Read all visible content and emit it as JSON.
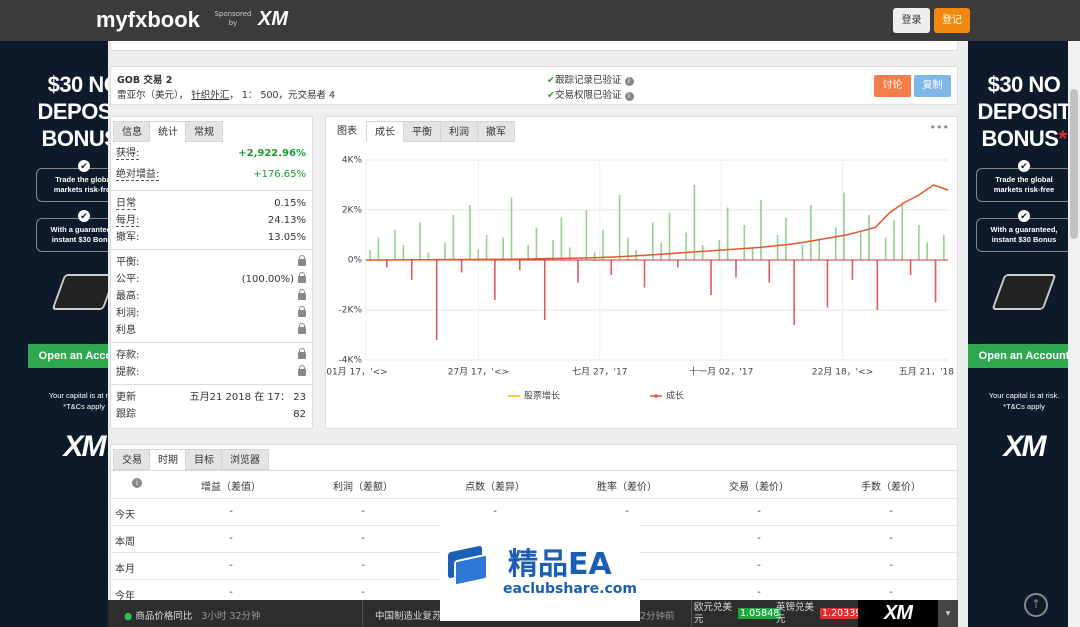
{
  "topbar": {
    "logo": "myfxbook",
    "sponsor": "Sponsored by",
    "sponsor_brand": "XM",
    "login": "登录",
    "register": "登记"
  },
  "ad": {
    "headline": [
      "$30 NO",
      "DEPOSIT",
      "BONUS"
    ],
    "asterisk": "*",
    "point1": "Trade the global markets risk-free",
    "point2": "With a guaranteed, instant $30 Bonus",
    "cta": "Open an Account",
    "disclaimer": "Your capital is at risk.",
    "tc": "*T&Cs apply",
    "brand": "XM"
  },
  "account": {
    "name": "GOB 交易 2",
    "currency": "雷亚尔（美元），",
    "broker": "针织外汇",
    "details": "， 1： 500，元交易者 4",
    "verified": [
      "跟踪记录已验证",
      "交易权限已验证"
    ],
    "discuss": "讨论",
    "copy": "复制"
  },
  "stats": {
    "tabs": [
      "信息",
      "统计",
      "常规"
    ],
    "active": 1,
    "groups": [
      [
        {
          "label": "获得:",
          "value": "+2,922.96%",
          "tone": "strong"
        },
        {
          "label": "绝对增益:",
          "value": "+176.65%",
          "tone": "good"
        }
      ],
      [
        {
          "label": "日常",
          "value": "0.15%"
        },
        {
          "label": "每月:",
          "value": "24.13%"
        },
        {
          "label": "撤军:",
          "value": "13.05%"
        }
      ],
      [
        {
          "label": "平衡:",
          "locked": true
        },
        {
          "label": "公平:",
          "value": "(100.00%)",
          "locked": true
        },
        {
          "label": "最高:",
          "locked": true
        },
        {
          "label": "利润:",
          "locked": true
        },
        {
          "label": "利息",
          "locked": true
        }
      ],
      [
        {
          "label": "存款:",
          "locked": true
        },
        {
          "label": "提款:",
          "locked": true
        }
      ],
      [
        {
          "label": "更新",
          "value": "五月21 2018 在 17： 23"
        },
        {
          "label": "跟踪",
          "value": "82"
        }
      ]
    ]
  },
  "chart_panel": {
    "tabs": [
      "图表",
      "成长",
      "平衡",
      "利润",
      "撤军"
    ],
    "active": 1,
    "menu": "•••"
  },
  "chart_data": {
    "type": "combo",
    "ylim": [
      -4000,
      4000
    ],
    "yticks": [
      {
        "value": 4000,
        "label": "4K%"
      },
      {
        "value": 2000,
        "label": "2K%"
      },
      {
        "value": 0,
        "label": "0%"
      },
      {
        "value": -2000,
        "label": "-2K%"
      },
      {
        "value": -4000,
        "label": "-4K%"
      }
    ],
    "x_labels": [
      "01月 17，'<>",
      "27月 17，'<>",
      "七月 27，'17",
      "十一月 02，'17",
      "22月 18，'<>",
      "五月 21，'18"
    ],
    "grid": true,
    "series": [
      {
        "name": "股票增长",
        "color": "#f5b400",
        "values": [
          null,
          null,
          null,
          null,
          null,
          null,
          null,
          null,
          null,
          null,
          null,
          null,
          null,
          null,
          null,
          null,
          null,
          null,
          null,
          null,
          null,
          null,
          null,
          null,
          null,
          null,
          null,
          null,
          null,
          null,
          null,
          null,
          null,
          null,
          null,
          null,
          null,
          null,
          null,
          null,
          null
        ]
      },
      {
        "name": "成长",
        "color": "#e4572e",
        "values": [
          0,
          0,
          5,
          10,
          10,
          15,
          20,
          20,
          25,
          30,
          30,
          40,
          50,
          60,
          70,
          80,
          100,
          120,
          150,
          180,
          220,
          260,
          300,
          340,
          380,
          420,
          460,
          500,
          560,
          620,
          700,
          800,
          900,
          1000,
          1150,
          1300,
          1900,
          2300,
          2600,
          3000,
          2800
        ]
      }
    ],
    "bars": {
      "positive_color": "#93d18c",
      "negative_color": "#e05a5a",
      "values": [
        400,
        900,
        -300,
        1200,
        600,
        -800,
        1500,
        300,
        -3200,
        700,
        1800,
        -500,
        2200,
        400,
        1000,
        -1600,
        900,
        2500,
        -400,
        600,
        1300,
        -2400,
        800,
        1700,
        500,
        -900,
        2000,
        300,
        1200,
        -600,
        2600,
        900,
        400,
        -1100,
        1500,
        700,
        1900,
        -300,
        1100,
        3000,
        600,
        -1400,
        800,
        2100,
        -700,
        1400,
        500,
        2400,
        -900,
        1000,
        1700,
        -2600,
        600,
        2200,
        800,
        -1900,
        1300,
        2700,
        -800,
        1100,
        1800,
        -2000,
        900,
        1600,
        2300,
        -600,
        1400,
        700,
        -1700,
        1000
      ]
    }
  },
  "period_table": {
    "tabs": [
      "交易",
      "时期",
      "目标",
      "浏览器"
    ],
    "active": 1,
    "icon": "i",
    "columns": [
      "增益（差值）",
      "利润（差额）",
      "点数（差异）",
      "胜率（差价）",
      "交易（差价）",
      "手数（差价）"
    ],
    "rows": [
      [
        "今天",
        "-",
        "-",
        "-",
        "-",
        "-",
        "-"
      ],
      [
        "本周",
        "-",
        "-",
        "-",
        "-",
        "-",
        "-"
      ],
      [
        "本月",
        "-",
        "-",
        "-",
        "-",
        "-",
        "-"
      ],
      [
        "今年",
        "-",
        "-",
        "-",
        "-",
        "-",
        "-"
      ]
    ]
  },
  "watermark": {
    "title": "精品EA",
    "url": "eaclubshare.com"
  },
  "ticker": {
    "news1": "商品价格同比",
    "time1": "3小时 32分钟",
    "news2": "中国制造业复苏",
    "time2": "2分钟前",
    "pair1": "欧元兑美元",
    "rate1": "1.05848",
    "pair2": "英镑兑美元",
    "rate2": "1.20339",
    "brand": "XM"
  }
}
